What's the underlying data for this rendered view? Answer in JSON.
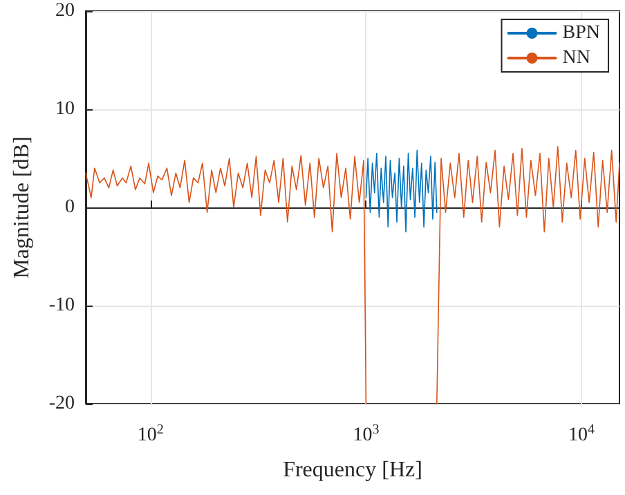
{
  "chart_data": {
    "type": "line",
    "xlabel": "Frequency [Hz]",
    "ylabel": "Magnitude [dB]",
    "log": "x",
    "xlim": [
      50,
      15000
    ],
    "xticks": [
      {
        "value": 100,
        "label": "10$^{2}$"
      },
      {
        "value": 1000,
        "label": "10$^{3}$"
      },
      {
        "value": 10000,
        "label": "10$^{4}$"
      }
    ],
    "ylim": [
      -20,
      20
    ],
    "yticks": [
      -20,
      -10,
      0,
      10,
      20
    ],
    "grid": true,
    "legend": "top right",
    "marker": "none",
    "line_style": "solid",
    "series": [
      {
        "name": "BPN",
        "color": "#0072bd",
        "x": [
          1000,
          1020,
          1045,
          1070,
          1095,
          1120,
          1150,
          1175,
          1205,
          1235,
          1265,
          1295,
          1325,
          1360,
          1390,
          1425,
          1460,
          1495,
          1530,
          1570,
          1605,
          1645,
          1685,
          1725,
          1770,
          1810,
          1855,
          1900,
          1945,
          1995,
          2040,
          2090,
          2130
        ],
        "values": [
          1.0,
          5.0,
          -0.5,
          4.5,
          1.5,
          5.5,
          -1.0,
          4.0,
          0.5,
          5.2,
          -2.0,
          4.8,
          1.0,
          3.5,
          -1.5,
          5.0,
          0.0,
          4.2,
          -2.5,
          5.5,
          0.8,
          4.0,
          -1.0,
          5.8,
          0.5,
          4.5,
          -2.0,
          3.8,
          1.5,
          5.2,
          -1.2,
          4.6,
          -0.5
        ]
      },
      {
        "name": "NN",
        "color": "#d95319",
        "x": [
          50,
          53,
          55,
          58,
          61,
          64,
          67,
          70,
          74,
          77,
          81,
          85,
          89,
          94,
          98,
          103,
          108,
          113,
          119,
          125,
          131,
          137,
          144,
          151,
          158,
          166,
          174,
          183,
          192,
          201,
          211,
          221,
          232,
          243,
          255,
          268,
          281,
          295,
          309,
          324,
          340,
          357,
          374,
          393,
          412,
          432,
          453,
          475,
          499,
          523,
          549,
          576,
          604,
          634,
          665,
          697,
          731,
          767,
          805,
          845,
          886,
          930,
          975,
          1000,
          1500,
          2130,
          2230,
          2340,
          2460,
          2580,
          2700,
          2840,
          2980,
          3120,
          3280,
          3440,
          3610,
          3780,
          3970,
          4160,
          4370,
          4580,
          4810,
          5040,
          5290,
          5550,
          5820,
          6110,
          6410,
          6720,
          7050,
          7400,
          7760,
          8140,
          8540,
          8960,
          9400,
          9860,
          10350,
          10850,
          11390,
          11950,
          12530,
          13150,
          13800,
          14480,
          15000
        ],
        "values": [
          3.5,
          1.0,
          4.0,
          2.5,
          3.0,
          2.0,
          3.8,
          2.2,
          3.0,
          2.5,
          4.2,
          1.8,
          3.0,
          2.4,
          4.5,
          1.5,
          3.2,
          2.8,
          4.0,
          1.2,
          3.5,
          2.0,
          4.8,
          0.5,
          3.0,
          2.5,
          4.5,
          -0.5,
          3.8,
          1.5,
          4.0,
          2.2,
          5.0,
          0.0,
          3.5,
          2.0,
          4.5,
          1.0,
          5.2,
          -0.8,
          3.8,
          2.5,
          4.8,
          0.5,
          5.0,
          -1.5,
          4.2,
          1.8,
          5.3,
          0.2,
          4.5,
          -1.0,
          5.0,
          2.0,
          4.2,
          -2.5,
          5.5,
          1.0,
          4.0,
          -1.2,
          5.2,
          0.5,
          4.8,
          -20,
          null,
          -20,
          5.0,
          -0.5,
          4.5,
          1.0,
          5.5,
          -1.0,
          4.8,
          0.5,
          5.2,
          -1.5,
          4.6,
          1.5,
          5.8,
          -2.0,
          4.2,
          0.8,
          5.5,
          -0.8,
          6.0,
          -1.0,
          4.8,
          1.2,
          5.5,
          -2.5,
          5.0,
          0.0,
          6.2,
          -1.5,
          4.5,
          1.0,
          5.8,
          -1.2,
          5.0,
          0.5,
          5.6,
          -2.0,
          4.8,
          -0.5,
          5.8,
          -1.5,
          4.5
        ]
      }
    ]
  }
}
